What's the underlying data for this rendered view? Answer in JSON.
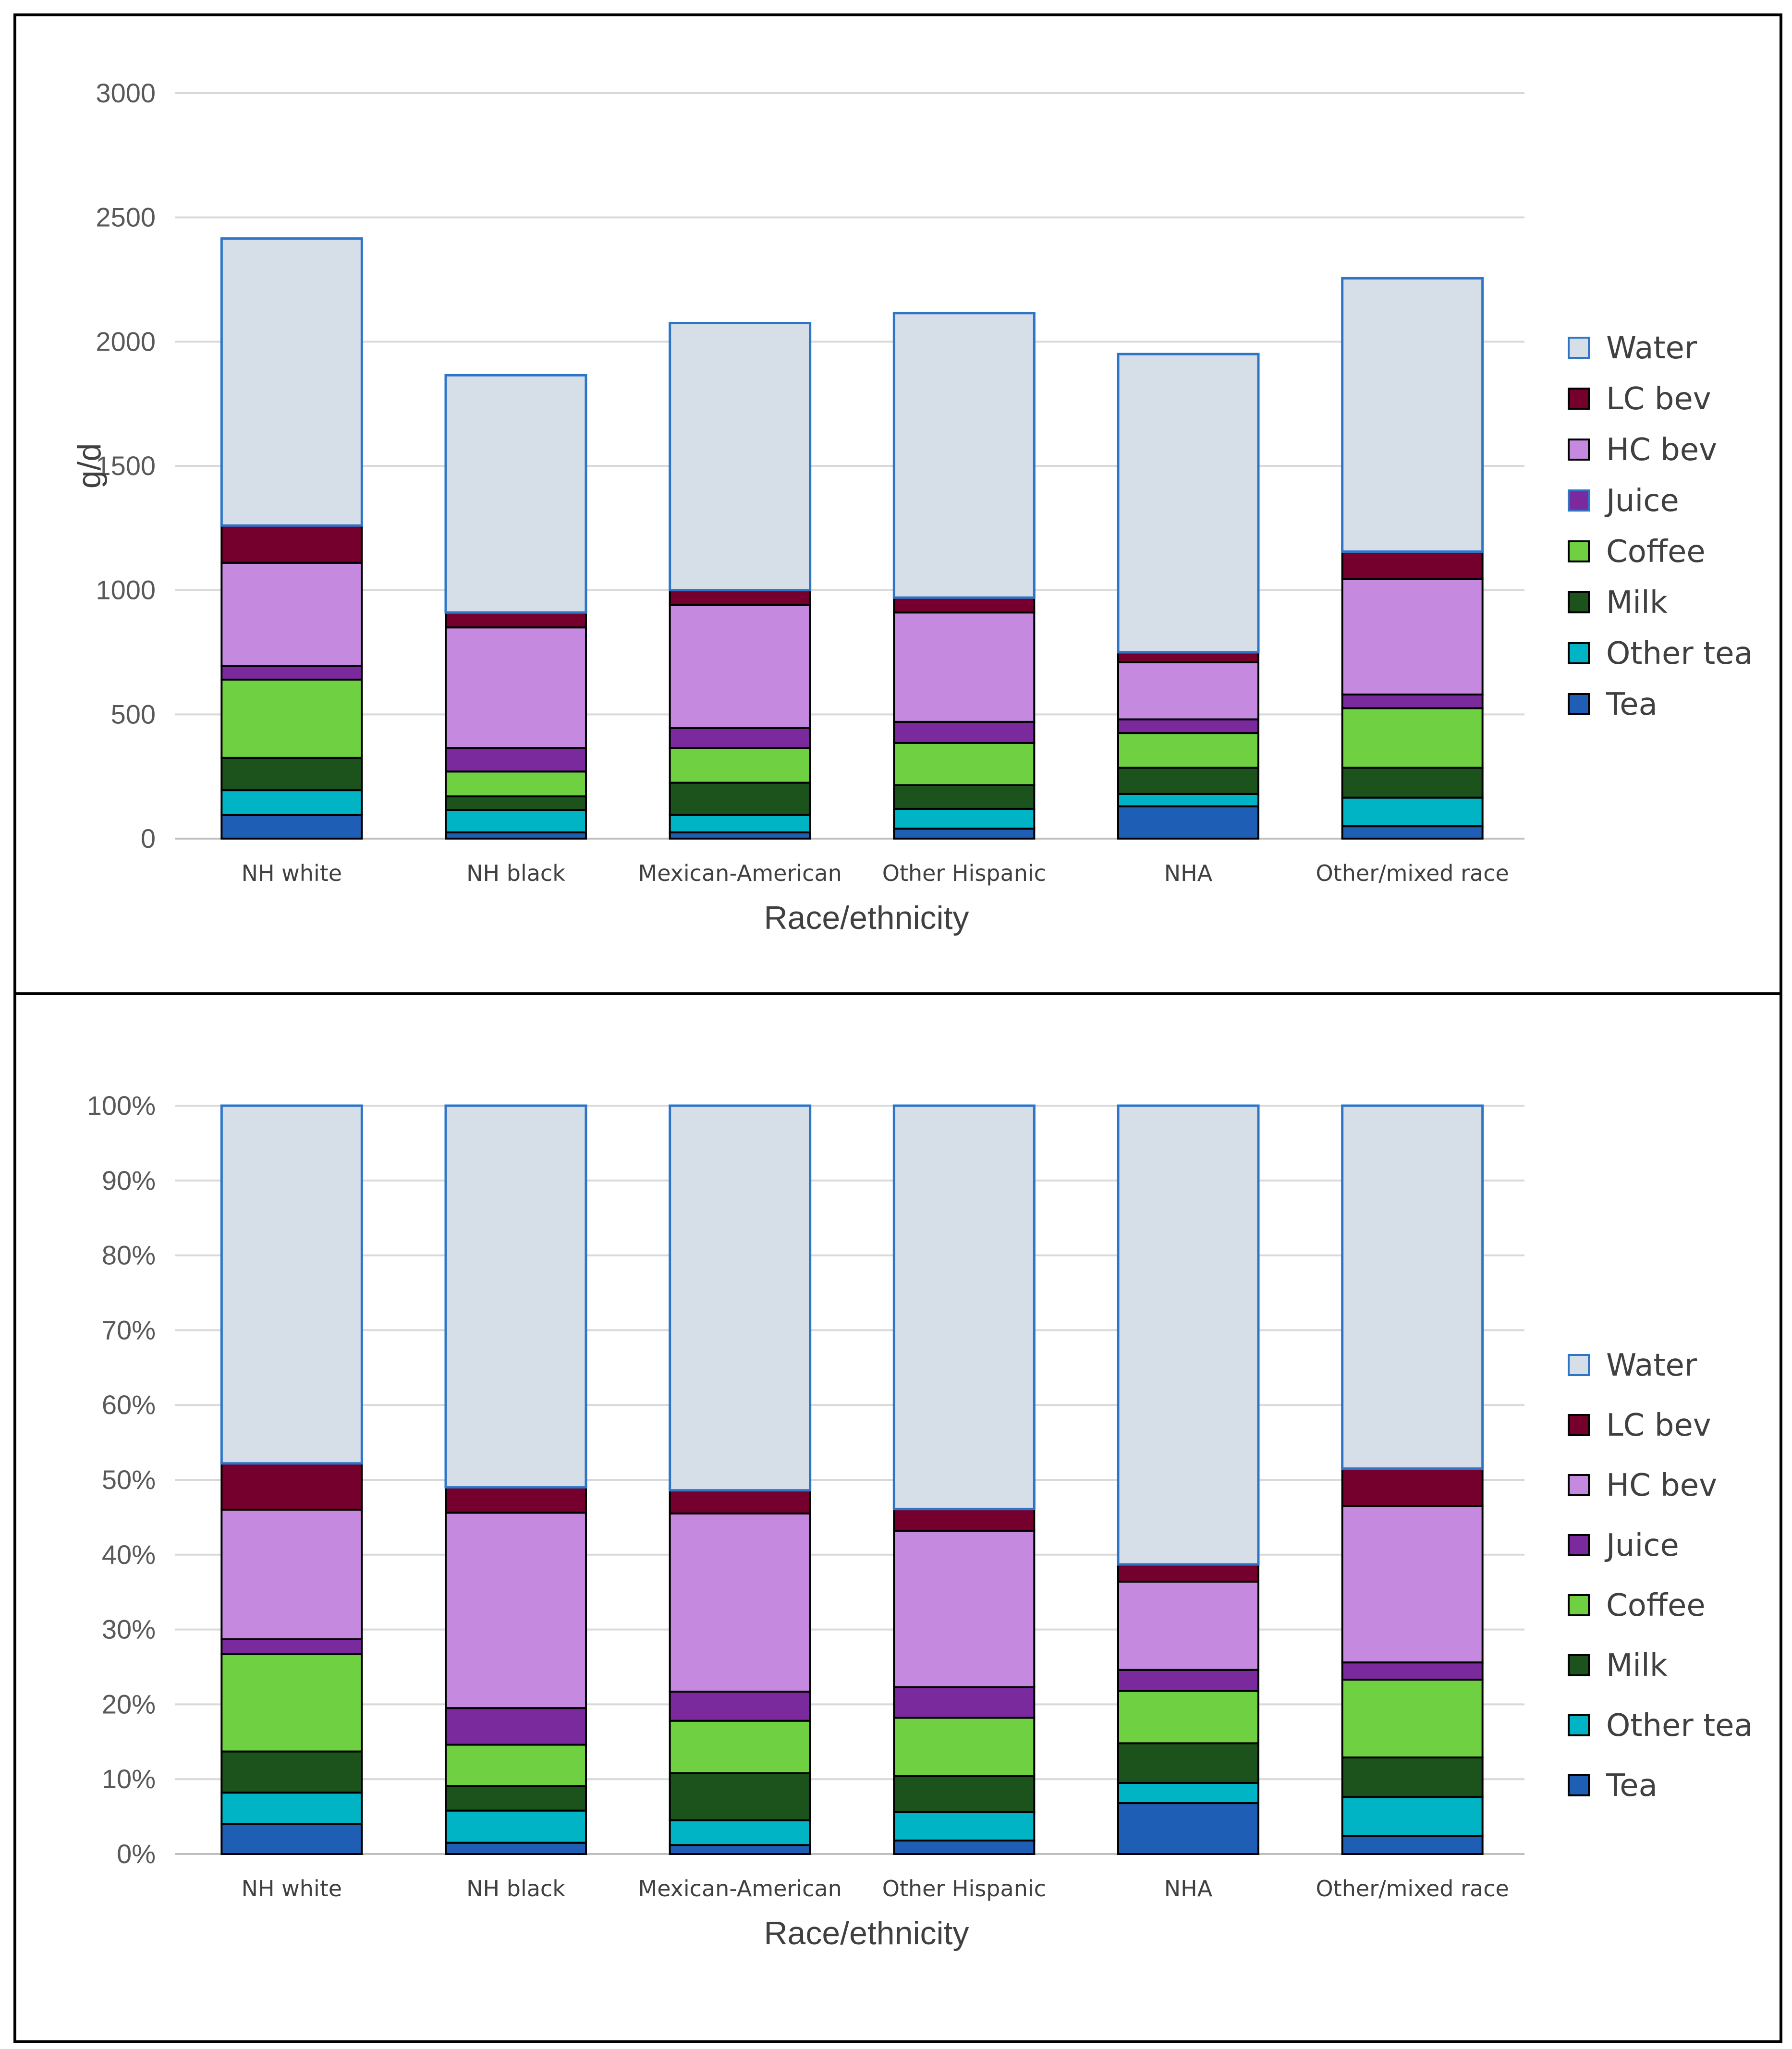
{
  "colors": {
    "Tea": "#1f5eb5",
    "Other tea": "#00b3c5",
    "Milk": "#1c531c",
    "Coffee": "#6fd142",
    "Juice": "#7b2a9e",
    "HC bev": "#c58ae0",
    "LC bev": "#75002d",
    "Water": "#d6dee8"
  },
  "chart_data": [
    {
      "type": "bar",
      "stacked": true,
      "categories": [
        "NH white",
        "NH black",
        "Mexican-American",
        "Other Hispanic",
        "NHA",
        "Other/mixed race"
      ],
      "series": [
        {
          "name": "Tea",
          "values": [
            95,
            25,
            25,
            40,
            130,
            50
          ]
        },
        {
          "name": "Other tea",
          "values": [
            100,
            90,
            70,
            80,
            50,
            115
          ]
        },
        {
          "name": "Milk",
          "values": [
            130,
            55,
            130,
            95,
            105,
            120
          ]
        },
        {
          "name": "Coffee",
          "values": [
            315,
            100,
            140,
            170,
            140,
            240
          ]
        },
        {
          "name": "Juice",
          "values": [
            55,
            95,
            80,
            85,
            55,
            55
          ]
        },
        {
          "name": "HC bev",
          "values": [
            415,
            485,
            495,
            440,
            230,
            465
          ]
        },
        {
          "name": "LC bev",
          "values": [
            150,
            60,
            60,
            60,
            40,
            110
          ]
        },
        {
          "name": "Water",
          "values": [
            1155,
            955,
            1075,
            1145,
            1200,
            1100
          ]
        }
      ],
      "title": "",
      "xlabel": "Race/ethnicity",
      "ylabel": "g/d",
      "ylim": [
        0,
        3000
      ],
      "yticks": [
        0,
        500,
        1000,
        1500,
        2000,
        2500,
        3000
      ],
      "ytick_labels": [
        "0",
        "500",
        "1000",
        "1500",
        "2000",
        "2500",
        "3000"
      ],
      "legend": [
        "Water",
        "LC bev",
        "HC bev",
        "Juice",
        "Coffee",
        "Milk",
        "Other tea",
        "Tea"
      ],
      "legend_position": "right",
      "grid": true
    },
    {
      "type": "bar",
      "stacked": true,
      "percent": true,
      "categories": [
        "NH white",
        "NH black",
        "Mexican-American",
        "Other Hispanic",
        "NHA",
        "Other/mixed race"
      ],
      "series": [
        {
          "name": "Tea",
          "values": [
            4,
            1.5,
            1.2,
            1.8,
            6.8,
            2.4
          ]
        },
        {
          "name": "Other tea",
          "values": [
            4.2,
            4.3,
            3.3,
            3.8,
            2.7,
            5.2
          ]
        },
        {
          "name": "Milk",
          "values": [
            5.5,
            3.3,
            6.3,
            4.8,
            5.3,
            5.3
          ]
        },
        {
          "name": "Coffee",
          "values": [
            13,
            5.5,
            7,
            7.8,
            7,
            10.4
          ]
        },
        {
          "name": "Juice",
          "values": [
            2,
            4.9,
            3.9,
            4.1,
            2.8,
            2.3
          ]
        },
        {
          "name": "HC bev",
          "values": [
            17.3,
            26.1,
            23.8,
            20.9,
            11.8,
            20.9
          ]
        },
        {
          "name": "LC bev",
          "values": [
            6.2,
            3.4,
            3.1,
            2.9,
            2.3,
            5
          ]
        },
        {
          "name": "Water",
          "values": [
            47.8,
            51,
            51.4,
            53.9,
            61.3,
            48.5
          ]
        }
      ],
      "title": "",
      "xlabel": "Race/ethnicity",
      "ylabel": "",
      "ylim": [
        0,
        100
      ],
      "yticks": [
        0,
        10,
        20,
        30,
        40,
        50,
        60,
        70,
        80,
        90,
        100
      ],
      "ytick_labels": [
        "0%",
        "10%",
        "20%",
        "30%",
        "40%",
        "50%",
        "60%",
        "70%",
        "80%",
        "90%",
        "100%"
      ],
      "legend": [
        "Water",
        "LC bev",
        "HC bev",
        "Juice",
        "Coffee",
        "Milk",
        "Other tea",
        "Tea"
      ],
      "legend_position": "right",
      "grid": true
    }
  ]
}
